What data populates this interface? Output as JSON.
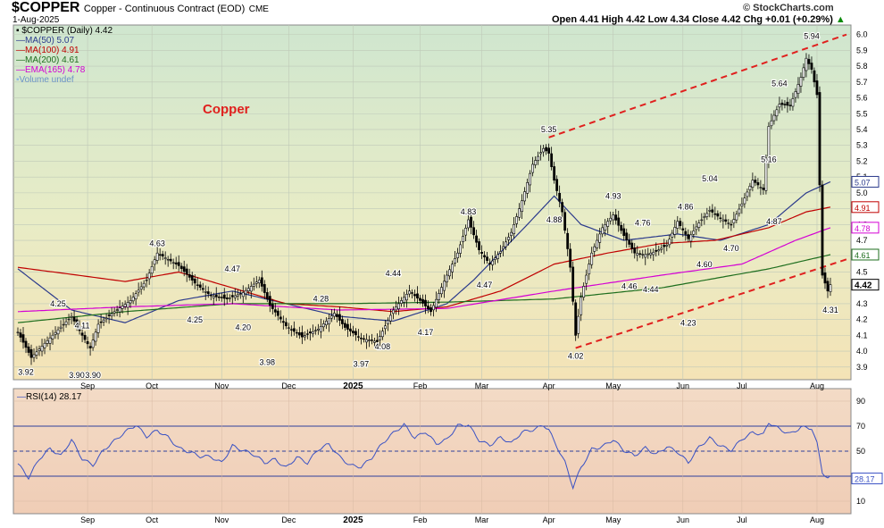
{
  "header": {
    "symbol": "$COPPER",
    "name": "Copper - Continuous Contract (EOD)",
    "exchange": "CME",
    "date": "1-Aug-2025",
    "ohlc": "Open 4.41  High 4.42  Low 4.34  Close 4.42  Chg +0.01 (+0.29%)",
    "ohlc_arrow": "▲",
    "brand": "© StockCharts.com"
  },
  "legend": [
    {
      "label": "▪ $COPPER (Daily) 4.42",
      "color": "#000000"
    },
    {
      "label": "MA(50) 5.07",
      "color": "#2b3a8c"
    },
    {
      "label": "MA(100) 4.91",
      "color": "#c00000"
    },
    {
      "label": "MA(200) 4.61",
      "color": "#1e6e1e"
    },
    {
      "label": "EMA(165) 4.78",
      "color": "#d400d4"
    },
    {
      "label": "Volume undef",
      "color": "#8fb8e8"
    }
  ],
  "annotation": "Copper",
  "chart_data": [
    {
      "type": "candlestick",
      "title": "$COPPER (Daily)",
      "x_tick_labels": [
        "Sep",
        "Oct",
        "Nov",
        "Dec",
        "2025",
        "Feb",
        "Mar",
        "Apr",
        "May",
        "Jun",
        "Jul",
        "Aug"
      ],
      "y_tick_labels": [
        "3.9",
        "4.0",
        "4.1",
        "4.2",
        "4.3",
        "4.4",
        "4.5",
        "4.6",
        "4.7",
        "4.8",
        "4.9",
        "5.0",
        "5.1",
        "5.2",
        "5.3",
        "5.4",
        "5.5",
        "5.6",
        "5.7",
        "5.8",
        "5.9",
        "6.0"
      ],
      "ylim": [
        3.82,
        6.06
      ],
      "price_path": [
        [
          0,
          4.12
        ],
        [
          5,
          3.96
        ],
        [
          10,
          4.05
        ],
        [
          20,
          4.22
        ],
        [
          24,
          4.1
        ],
        [
          27,
          4.02
        ],
        [
          30,
          4.17
        ],
        [
          36,
          4.25
        ],
        [
          42,
          4.32
        ],
        [
          48,
          4.45
        ],
        [
          52,
          4.62
        ],
        [
          60,
          4.54
        ],
        [
          66,
          4.43
        ],
        [
          72,
          4.35
        ],
        [
          78,
          4.33
        ],
        [
          84,
          4.37
        ],
        [
          90,
          4.45
        ],
        [
          94,
          4.29
        ],
        [
          100,
          4.16
        ],
        [
          106,
          4.09
        ],
        [
          112,
          4.14
        ],
        [
          118,
          4.24
        ],
        [
          122,
          4.15
        ],
        [
          128,
          4.08
        ],
        [
          134,
          4.06
        ],
        [
          140,
          4.26
        ],
        [
          146,
          4.38
        ],
        [
          150,
          4.32
        ],
        [
          154,
          4.25
        ],
        [
          160,
          4.48
        ],
        [
          164,
          4.62
        ],
        [
          168,
          4.83
        ],
        [
          172,
          4.64
        ],
        [
          176,
          4.55
        ],
        [
          180,
          4.63
        ],
        [
          184,
          4.75
        ],
        [
          188,
          4.95
        ],
        [
          192,
          5.18
        ],
        [
          196,
          5.28
        ],
        [
          198,
          5.25
        ],
        [
          200,
          5.08
        ],
        [
          203,
          4.88
        ],
        [
          206,
          4.53
        ],
        [
          208,
          4.1
        ],
        [
          210,
          4.34
        ],
        [
          214,
          4.62
        ],
        [
          218,
          4.78
        ],
        [
          222,
          4.86
        ],
        [
          226,
          4.73
        ],
        [
          230,
          4.62
        ],
        [
          234,
          4.61
        ],
        [
          238,
          4.63
        ],
        [
          242,
          4.67
        ],
        [
          246,
          4.82
        ],
        [
          250,
          4.71
        ],
        [
          254,
          4.81
        ],
        [
          258,
          4.89
        ],
        [
          262,
          4.84
        ],
        [
          266,
          4.8
        ],
        [
          270,
          4.93
        ],
        [
          274,
          5.08
        ],
        [
          278,
          5.02
        ],
        [
          280,
          5.42
        ],
        [
          284,
          5.56
        ],
        [
          288,
          5.55
        ],
        [
          292,
          5.73
        ],
        [
          294,
          5.85
        ],
        [
          296,
          5.78
        ],
        [
          298,
          5.62
        ],
        [
          300,
          4.48
        ],
        [
          302,
          4.38
        ],
        [
          303,
          4.42
        ]
      ],
      "labels": [
        {
          "i": 3,
          "v": 3.92,
          "text": "3.92",
          "pos": "below"
        },
        {
          "i": 22,
          "v": 3.9,
          "text": "3.90",
          "pos": "below"
        },
        {
          "i": 28,
          "v": 3.9,
          "text": "3.90",
          "pos": "below"
        },
        {
          "i": 15,
          "v": 4.25,
          "text": "4.25",
          "pos": "above"
        },
        {
          "i": 24,
          "v": 4.11,
          "text": "4.11",
          "pos": "above"
        },
        {
          "i": 52,
          "v": 4.63,
          "text": "4.63",
          "pos": "above"
        },
        {
          "i": 66,
          "v": 4.25,
          "text": "4.25",
          "pos": "below"
        },
        {
          "i": 80,
          "v": 4.47,
          "text": "4.47",
          "pos": "above"
        },
        {
          "i": 84,
          "v": 4.2,
          "text": "4.20",
          "pos": "below"
        },
        {
          "i": 93,
          "v": 3.98,
          "text": "3.98",
          "pos": "below"
        },
        {
          "i": 113,
          "v": 4.28,
          "text": "4.28",
          "pos": "above"
        },
        {
          "i": 128,
          "v": 3.97,
          "text": "3.97",
          "pos": "below"
        },
        {
          "i": 136,
          "v": 4.08,
          "text": "4.08",
          "pos": "below"
        },
        {
          "i": 140,
          "v": 4.44,
          "text": "4.44",
          "pos": "above"
        },
        {
          "i": 152,
          "v": 4.17,
          "text": "4.17",
          "pos": "below"
        },
        {
          "i": 168,
          "v": 4.83,
          "text": "4.83",
          "pos": "above"
        },
        {
          "i": 174,
          "v": 4.47,
          "text": "4.47",
          "pos": "below"
        },
        {
          "i": 198,
          "v": 5.35,
          "text": "5.35",
          "pos": "above"
        },
        {
          "i": 200,
          "v": 4.88,
          "text": "4.88",
          "pos": "below"
        },
        {
          "i": 208,
          "v": 4.02,
          "text": "4.02",
          "pos": "below"
        },
        {
          "i": 222,
          "v": 4.93,
          "text": "4.93",
          "pos": "above"
        },
        {
          "i": 228,
          "v": 4.46,
          "text": "4.46",
          "pos": "below"
        },
        {
          "i": 233,
          "v": 4.76,
          "text": "4.76",
          "pos": "above"
        },
        {
          "i": 236,
          "v": 4.44,
          "text": "4.44",
          "pos": "below"
        },
        {
          "i": 249,
          "v": 4.86,
          "text": "4.86",
          "pos": "above"
        },
        {
          "i": 250,
          "v": 4.23,
          "text": "4.23",
          "pos": "below"
        },
        {
          "i": 256,
          "v": 4.6,
          "text": "4.60",
          "pos": "below"
        },
        {
          "i": 258,
          "v": 5.04,
          "text": "5.04",
          "pos": "above"
        },
        {
          "i": 266,
          "v": 4.7,
          "text": "4.70",
          "pos": "below"
        },
        {
          "i": 280,
          "v": 5.16,
          "text": "5.16",
          "pos": "above"
        },
        {
          "i": 282,
          "v": 4.87,
          "text": "4.87",
          "pos": "below"
        },
        {
          "i": 284,
          "v": 5.64,
          "text": "5.64",
          "pos": "above"
        },
        {
          "i": 296,
          "v": 5.94,
          "text": "5.94",
          "pos": "above"
        },
        {
          "i": 303,
          "v": 4.31,
          "text": "4.31",
          "pos": "below"
        }
      ],
      "trendlines": [
        {
          "from": [
            198,
            5.35
          ],
          "to": [
            309,
            6.0
          ],
          "color": "#e0201e"
        },
        {
          "from": [
            208,
            4.02
          ],
          "to": [
            309,
            4.58
          ],
          "color": "#e0201e"
        }
      ],
      "moving_averages": [
        {
          "name": "MA(50)",
          "color": "#2b3a8c",
          "last": 5.07,
          "path": [
            [
              0,
              4.52
            ],
            [
              20,
              4.26
            ],
            [
              40,
              4.18
            ],
            [
              60,
              4.32
            ],
            [
              80,
              4.38
            ],
            [
              100,
              4.3
            ],
            [
              120,
              4.22
            ],
            [
              140,
              4.19
            ],
            [
              160,
              4.3
            ],
            [
              170,
              4.45
            ],
            [
              190,
              4.8
            ],
            [
              200,
              4.98
            ],
            [
              210,
              4.8
            ],
            [
              226,
              4.7
            ],
            [
              246,
              4.74
            ],
            [
              262,
              4.7
            ],
            [
              280,
              4.8
            ],
            [
              294,
              5.0
            ],
            [
              303,
              5.07
            ]
          ]
        },
        {
          "name": "MA(100)",
          "color": "#c00000",
          "last": 4.91,
          "path": [
            [
              0,
              4.53
            ],
            [
              40,
              4.44
            ],
            [
              60,
              4.5
            ],
            [
              80,
              4.4
            ],
            [
              100,
              4.3
            ],
            [
              120,
              4.28
            ],
            [
              140,
              4.25
            ],
            [
              160,
              4.28
            ],
            [
              180,
              4.38
            ],
            [
              200,
              4.55
            ],
            [
              220,
              4.62
            ],
            [
              240,
              4.68
            ],
            [
              260,
              4.7
            ],
            [
              280,
              4.78
            ],
            [
              294,
              4.88
            ],
            [
              303,
              4.91
            ]
          ]
        },
        {
          "name": "MA(200)",
          "color": "#1e6e1e",
          "last": 4.61,
          "path": [
            [
              0,
              4.18
            ],
            [
              40,
              4.25
            ],
            [
              80,
              4.3
            ],
            [
              120,
              4.3
            ],
            [
              160,
              4.31
            ],
            [
              200,
              4.33
            ],
            [
              240,
              4.4
            ],
            [
              280,
              4.52
            ],
            [
              303,
              4.61
            ]
          ]
        },
        {
          "name": "EMA(165)",
          "color": "#d400d4",
          "last": 4.78,
          "path": [
            [
              0,
              4.25
            ],
            [
              40,
              4.28
            ],
            [
              80,
              4.3
            ],
            [
              120,
              4.26
            ],
            [
              160,
              4.27
            ],
            [
              200,
              4.38
            ],
            [
              240,
              4.48
            ],
            [
              270,
              4.55
            ],
            [
              290,
              4.7
            ],
            [
              303,
              4.78
            ]
          ]
        }
      ],
      "last_value_labels": [
        {
          "v": 5.07,
          "text": "5.07",
          "color": "#2b3a8c"
        },
        {
          "v": 4.91,
          "text": "4.91",
          "color": "#c00000"
        },
        {
          "v": 4.78,
          "text": "4.78",
          "color": "#d400d4"
        },
        {
          "v": 4.61,
          "text": "4.61",
          "color": "#1e6e1e"
        },
        {
          "v": 4.42,
          "text": "4.42",
          "color": "#000000"
        }
      ]
    },
    {
      "type": "line",
      "title": "RSI(14) 28.17",
      "ylim": [
        0,
        100
      ],
      "y_tick_labels": [
        "10",
        "30",
        "50",
        "70",
        "90"
      ],
      "reference_lines": [
        70,
        50,
        30
      ],
      "last_value": "28.17",
      "color": "#3a52c4",
      "path": [
        [
          0,
          40
        ],
        [
          4,
          30
        ],
        [
          8,
          45
        ],
        [
          12,
          52
        ],
        [
          16,
          45
        ],
        [
          20,
          58
        ],
        [
          24,
          44
        ],
        [
          28,
          40
        ],
        [
          32,
          52
        ],
        [
          36,
          58
        ],
        [
          40,
          64
        ],
        [
          44,
          70
        ],
        [
          48,
          62
        ],
        [
          52,
          68
        ],
        [
          56,
          62
        ],
        [
          60,
          52
        ],
        [
          64,
          48
        ],
        [
          68,
          45
        ],
        [
          72,
          46
        ],
        [
          76,
          42
        ],
        [
          80,
          55
        ],
        [
          84,
          50
        ],
        [
          88,
          46
        ],
        [
          92,
          40
        ],
        [
          96,
          44
        ],
        [
          100,
          38
        ],
        [
          104,
          46
        ],
        [
          108,
          40
        ],
        [
          112,
          50
        ],
        [
          116,
          55
        ],
        [
          120,
          46
        ],
        [
          124,
          40
        ],
        [
          128,
          38
        ],
        [
          132,
          44
        ],
        [
          136,
          55
        ],
        [
          140,
          64
        ],
        [
          144,
          72
        ],
        [
          148,
          62
        ],
        [
          152,
          66
        ],
        [
          156,
          55
        ],
        [
          160,
          58
        ],
        [
          164,
          70
        ],
        [
          168,
          72
        ],
        [
          172,
          60
        ],
        [
          176,
          55
        ],
        [
          180,
          60
        ],
        [
          184,
          55
        ],
        [
          188,
          65
        ],
        [
          192,
          68
        ],
        [
          196,
          72
        ],
        [
          198,
          68
        ],
        [
          200,
          58
        ],
        [
          204,
          40
        ],
        [
          207,
          20
        ],
        [
          210,
          36
        ],
        [
          214,
          52
        ],
        [
          218,
          55
        ],
        [
          222,
          60
        ],
        [
          226,
          50
        ],
        [
          230,
          45
        ],
        [
          234,
          52
        ],
        [
          238,
          48
        ],
        [
          242,
          55
        ],
        [
          246,
          50
        ],
        [
          250,
          40
        ],
        [
          254,
          52
        ],
        [
          258,
          60
        ],
        [
          262,
          55
        ],
        [
          266,
          52
        ],
        [
          270,
          60
        ],
        [
          274,
          64
        ],
        [
          278,
          62
        ],
        [
          280,
          72
        ],
        [
          284,
          68
        ],
        [
          288,
          65
        ],
        [
          292,
          70
        ],
        [
          296,
          68
        ],
        [
          298,
          55
        ],
        [
          300,
          32
        ],
        [
          302,
          27
        ],
        [
          303,
          28
        ]
      ]
    }
  ]
}
